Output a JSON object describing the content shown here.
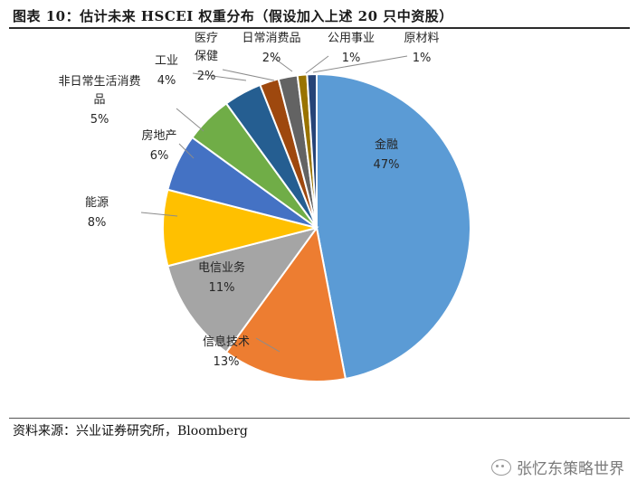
{
  "title": "图表 10：估计未来 HSCEI 权重分布（假设加入上述 20 只中资股）",
  "source": "资料来源：兴业证券研究所，Bloomberg",
  "watermark": "张忆东策略世界",
  "chart_data": {
    "type": "pie",
    "title": "图表 10：估计未来 HSCEI 权重分布（假设加入上述 20 只中资股）",
    "slices": [
      {
        "name": "金融",
        "pct_label": "47%",
        "value": 47,
        "color": "#5b9bd5"
      },
      {
        "name": "信息技术",
        "pct_label": "13%",
        "value": 13,
        "color": "#ed7d31"
      },
      {
        "name": "电信业务",
        "pct_label": "11%",
        "value": 11,
        "color": "#a5a5a5"
      },
      {
        "name": "能源",
        "pct_label": "8%",
        "value": 8,
        "color": "#ffc000"
      },
      {
        "name": "房地产",
        "pct_label": "6%",
        "value": 6,
        "color": "#4472c4"
      },
      {
        "name": "非日常生活消费品",
        "pct_label": "5%",
        "value": 5,
        "color": "#70ad47"
      },
      {
        "name": "工业",
        "pct_label": "4%",
        "value": 4,
        "color": "#255e91"
      },
      {
        "name": "医疗保健",
        "pct_label": "2%",
        "value": 2,
        "color": "#9e480e"
      },
      {
        "name": "日常消费品",
        "pct_label": "2%",
        "value": 2,
        "color": "#636363"
      },
      {
        "name": "公用事业",
        "pct_label": "1%",
        "value": 1,
        "color": "#997300"
      },
      {
        "name": "原材料",
        "pct_label": "1%",
        "value": 1,
        "color": "#264478"
      }
    ]
  }
}
